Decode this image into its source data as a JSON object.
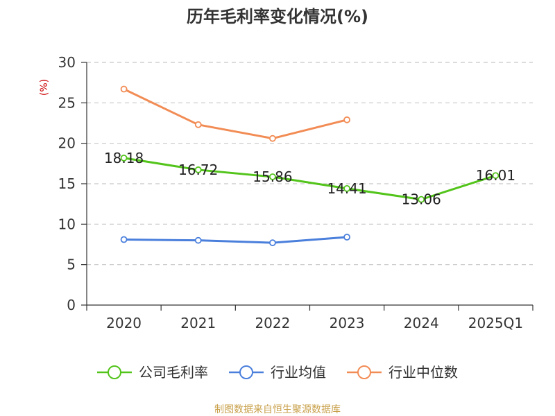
{
  "chart_data": {
    "type": "line",
    "title": "历年毛利率变化情况(%)",
    "ylabel": "(%)",
    "xlabel": "",
    "categories": [
      "2020",
      "2021",
      "2022",
      "2023",
      "2024",
      "2025Q1"
    ],
    "ylim": [
      0,
      30
    ],
    "yticks": [
      0,
      5,
      10,
      15,
      20,
      25,
      30
    ],
    "grid": true,
    "legend_position": "bottom",
    "series": [
      {
        "name": "公司毛利率",
        "color": "#52c41a",
        "values": [
          18.18,
          16.72,
          15.86,
          14.41,
          13.06,
          16.01
        ],
        "labels": [
          "18.18",
          "16.72",
          "15.86",
          "14.41",
          "13.06",
          "16.01"
        ],
        "show_labels": true
      },
      {
        "name": "行业均值",
        "color": "#4a7fdc",
        "values": [
          8.1,
          8.0,
          7.7,
          8.4,
          null,
          null
        ],
        "show_labels": false
      },
      {
        "name": "行业中位数",
        "color": "#f28c55",
        "values": [
          26.7,
          22.3,
          20.6,
          22.9,
          null,
          null
        ],
        "show_labels": false
      }
    ]
  },
  "source": "制图数据来自恒生聚源数据库"
}
